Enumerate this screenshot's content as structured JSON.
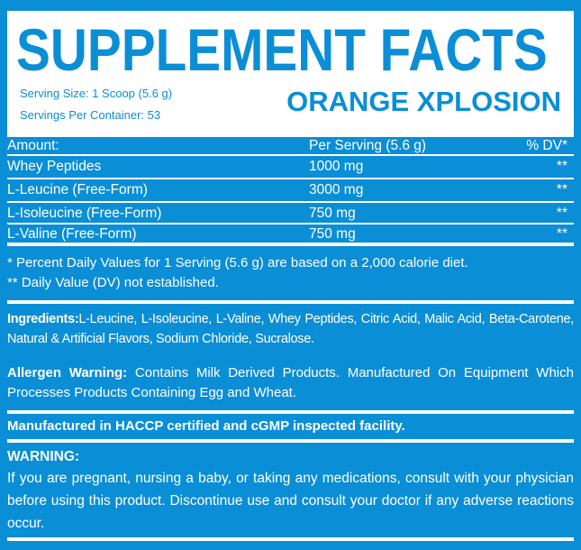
{
  "header": {
    "title": "SUPPLEMENT FACTS",
    "serving_size": "Serving Size: 1 Scoop (5.6 g)",
    "servings_per_container": "Servings Per Container: 53",
    "flavor": "ORANGE XPLOSION"
  },
  "table": {
    "columns": [
      "Amount:",
      "Per Serving (5.6 g)",
      "% DV*"
    ],
    "rows": [
      {
        "name": "Whey Peptides",
        "amount": "1000 mg",
        "dv": "**"
      },
      {
        "name": "L-Leucine (Free-Form)",
        "amount": "3000 mg",
        "dv": "**"
      },
      {
        "name": "L-Isoleucine (Free-Form)",
        "amount": "750 mg",
        "dv": "**"
      },
      {
        "name": "L-Valine (Free-Form)",
        "amount": "750 mg",
        "dv": "**"
      }
    ]
  },
  "footnotes": [
    "* Percent Daily Values for 1 Serving (5.6 g) are based on a 2,000 calorie diet.",
    "** Daily Value (DV) not established."
  ],
  "ingredients": {
    "label": "Ingredients:",
    "text": "L-Leucine, L-Isoleucine, L-Valine, Whey Peptides, Citric Acid, Malic Acid, Beta-Carotene, Natural & Artificial Flavors, Sodium Chloride, Sucralose."
  },
  "allergen": {
    "label": "Allergen Warning:",
    "text": " Contains Milk Derived Products. Manufactured On Equipment Which Processes Products Containing Egg and Wheat."
  },
  "facility": "Manufactured in HACCP certified and cGMP inspected facility.",
  "warning": {
    "label": "WARNING:",
    "text": "If you are pregnant, nursing a baby, or taking any medications, consult with your physician before using this product. Discontinue use and consult your doctor if any adverse reactions occur."
  }
}
